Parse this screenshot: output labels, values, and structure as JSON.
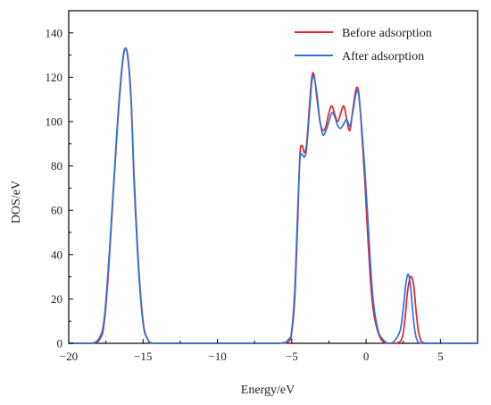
{
  "chart_data": {
    "type": "line",
    "xlabel": "Energy/eV",
    "ylabel": "DOS/eV",
    "xlim": [
      -20,
      7.5
    ],
    "ylim": [
      0,
      150
    ],
    "xticks": [
      -20,
      -15,
      -10,
      -5,
      0,
      5
    ],
    "yticks": [
      0,
      20,
      40,
      60,
      80,
      100,
      120,
      140
    ],
    "legend_position": "top-right",
    "grid": false,
    "series": [
      {
        "name": "Before adsorption",
        "color": "#e8202a",
        "x": [
          -20,
          -18.5,
          -17.9,
          -17.6,
          -17.3,
          -17.0,
          -16.7,
          -16.4,
          -16.2,
          -16.0,
          -15.8,
          -15.6,
          -15.3,
          -15.0,
          -14.7,
          -14.3,
          -13,
          -10,
          -6,
          -5.2,
          -5.0,
          -4.8,
          -4.6,
          -4.45,
          -4.3,
          -4.15,
          -4.0,
          -3.8,
          -3.65,
          -3.5,
          -3.3,
          -3.1,
          -2.9,
          -2.7,
          -2.5,
          -2.3,
          -2.1,
          -1.9,
          -1.7,
          -1.5,
          -1.3,
          -1.1,
          -0.9,
          -0.7,
          -0.55,
          -0.45,
          -0.3,
          -0.1,
          0.1,
          0.3,
          0.5,
          0.8,
          1.1,
          1.5,
          2.0,
          2.4,
          2.6,
          2.8,
          3.0,
          3.2,
          3.4,
          3.6,
          4.0,
          5.5,
          7.5
        ],
        "values": [
          0,
          0,
          2,
          10,
          35,
          68,
          100,
          125,
          133,
          128,
          110,
          75,
          35,
          10,
          2,
          0,
          0,
          0,
          0,
          1,
          5,
          20,
          55,
          85,
          89,
          86,
          90,
          108,
          120,
          121,
          110,
          100,
          96,
          98,
          104,
          107,
          103,
          100,
          104,
          107,
          101,
          96,
          105,
          114,
          115,
          110,
          96,
          75,
          50,
          28,
          14,
          5,
          1,
          0,
          0,
          2,
          10,
          24,
          30,
          26,
          12,
          3,
          0,
          0,
          0
        ]
      },
      {
        "name": "After adsorption",
        "color": "#2e73d8",
        "x": [
          -20,
          -18.5,
          -17.9,
          -17.6,
          -17.3,
          -17.0,
          -16.7,
          -16.4,
          -16.2,
          -16.0,
          -15.8,
          -15.6,
          -15.3,
          -15.0,
          -14.7,
          -14.3,
          -13,
          -10,
          -6,
          -5.2,
          -5.0,
          -4.8,
          -4.6,
          -4.45,
          -4.3,
          -4.15,
          -4.0,
          -3.8,
          -3.65,
          -3.5,
          -3.3,
          -3.1,
          -2.9,
          -2.7,
          -2.5,
          -2.3,
          -2.1,
          -1.9,
          -1.7,
          -1.5,
          -1.3,
          -1.1,
          -0.9,
          -0.7,
          -0.55,
          -0.45,
          -0.3,
          -0.1,
          0.1,
          0.3,
          0.5,
          0.8,
          1.1,
          1.5,
          1.9,
          2.3,
          2.5,
          2.7,
          2.85,
          3.0,
          3.2,
          3.4,
          3.8,
          5.5,
          7.5
        ],
        "values": [
          0,
          0,
          3,
          12,
          38,
          70,
          102,
          126,
          133,
          127,
          108,
          72,
          33,
          9,
          2,
          0,
          0,
          0,
          0,
          2,
          6,
          24,
          60,
          83,
          85,
          84,
          88,
          105,
          118,
          120,
          112,
          100,
          94,
          96,
          100,
          104,
          102,
          98,
          97,
          99,
          101,
          98,
          104,
          112,
          114,
          109,
          98,
          80,
          58,
          35,
          18,
          6,
          2,
          0,
          1,
          6,
          16,
          28,
          31,
          25,
          10,
          2,
          0,
          0,
          0
        ]
      }
    ]
  }
}
